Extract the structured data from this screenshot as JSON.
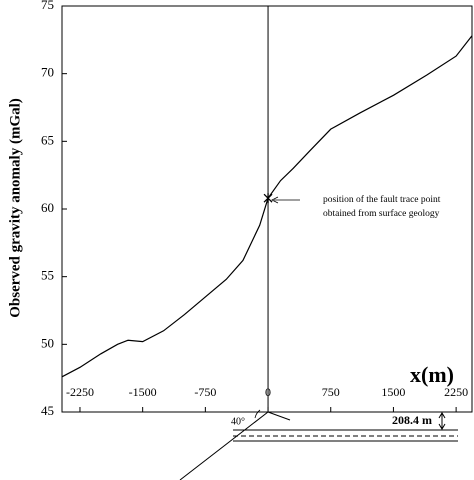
{
  "chart_data": {
    "type": "line",
    "ylabel": "Observed gravity anomaly (mGal)",
    "xlabel": "x(m)",
    "x": [
      -2465,
      -2250,
      -2000,
      -1800,
      -1675,
      -1500,
      -1250,
      -1000,
      -750,
      -500,
      -300,
      -100,
      0,
      150,
      300,
      500,
      750,
      1100,
      1500,
      1900,
      2250,
      2440
    ],
    "series": [
      {
        "color": "#000000",
        "values": [
          47.6,
          48.3,
          49.3,
          50.0,
          50.3,
          50.2,
          51.0,
          52.2,
          53.5,
          54.8,
          56.2,
          58.8,
          60.8,
          62.1,
          63.0,
          64.3,
          65.9,
          67.1,
          68.4,
          69.9,
          71.3,
          72.8
        ]
      }
    ],
    "xlim": [
      -2465,
      2440
    ],
    "ylim": [
      45,
      75
    ],
    "xticks": [
      -2250,
      -1500,
      -750,
      0,
      750,
      1500,
      2250
    ],
    "yticks": [
      45,
      50,
      55,
      60,
      65,
      70,
      75
    ],
    "marker": {
      "x": 0,
      "y": 60.8
    },
    "annotation": [
      "position of the fault trace point",
      "obtained from surface geology"
    ],
    "dip_label": "40°",
    "depth_label": "208.4 m"
  }
}
